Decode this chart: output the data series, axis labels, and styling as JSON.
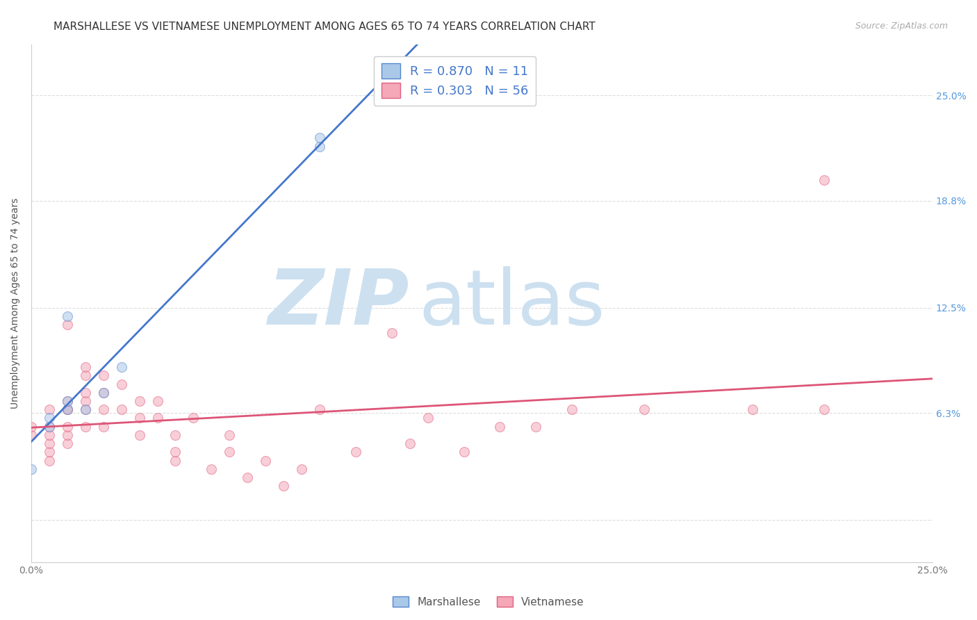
{
  "title": "MARSHALLESE VS VIETNAMESE UNEMPLOYMENT AMONG AGES 65 TO 74 YEARS CORRELATION CHART",
  "source": "Source: ZipAtlas.com",
  "ylabel": "Unemployment Among Ages 65 to 74 years",
  "xlim": [
    0.0,
    0.25
  ],
  "ylim": [
    -0.025,
    0.28
  ],
  "ytick_values": [
    0.0,
    0.063,
    0.125,
    0.188,
    0.25
  ],
  "right_ytick_labels": [
    "",
    "6.3%",
    "12.5%",
    "18.8%",
    "25.0%"
  ],
  "right_ytick_color": "#5599dd",
  "xtick_labels": [
    "0.0%",
    "25.0%"
  ],
  "marshallese_color": "#aac8e8",
  "vietnamese_color": "#f4a8b8",
  "marshallese_edge_color": "#5588cc",
  "vietnamese_edge_color": "#e06080",
  "marshallese_line_color": "#4477cc",
  "vietnamese_line_color": "#dd5577",
  "marshallese_R": 0.87,
  "marshallese_N": 11,
  "vietnamese_R": 0.303,
  "vietnamese_N": 56,
  "marshallese_x": [
    0.0,
    0.005,
    0.005,
    0.01,
    0.01,
    0.01,
    0.015,
    0.02,
    0.025,
    0.08,
    0.08
  ],
  "marshallese_y": [
    0.03,
    0.055,
    0.06,
    0.065,
    0.07,
    0.12,
    0.065,
    0.075,
    0.09,
    0.22,
    0.225
  ],
  "vietnamese_x": [
    0.0,
    0.0,
    0.005,
    0.005,
    0.005,
    0.005,
    0.005,
    0.005,
    0.01,
    0.01,
    0.01,
    0.01,
    0.01,
    0.01,
    0.01,
    0.015,
    0.015,
    0.015,
    0.015,
    0.015,
    0.015,
    0.02,
    0.02,
    0.02,
    0.02,
    0.025,
    0.025,
    0.03,
    0.03,
    0.03,
    0.035,
    0.035,
    0.04,
    0.04,
    0.04,
    0.045,
    0.05,
    0.055,
    0.055,
    0.06,
    0.065,
    0.07,
    0.075,
    0.08,
    0.09,
    0.1,
    0.105,
    0.11,
    0.12,
    0.13,
    0.14,
    0.15,
    0.17,
    0.2,
    0.22,
    0.22
  ],
  "vietnamese_y": [
    0.05,
    0.055,
    0.035,
    0.04,
    0.045,
    0.05,
    0.055,
    0.065,
    0.045,
    0.05,
    0.055,
    0.065,
    0.065,
    0.07,
    0.115,
    0.055,
    0.065,
    0.07,
    0.075,
    0.085,
    0.09,
    0.055,
    0.065,
    0.075,
    0.085,
    0.065,
    0.08,
    0.05,
    0.06,
    0.07,
    0.06,
    0.07,
    0.035,
    0.04,
    0.05,
    0.06,
    0.03,
    0.04,
    0.05,
    0.025,
    0.035,
    0.02,
    0.03,
    0.065,
    0.04,
    0.11,
    0.045,
    0.06,
    0.04,
    0.055,
    0.055,
    0.065,
    0.065,
    0.065,
    0.065,
    0.2
  ],
  "watermark_ZIP_color": "#cce0f0",
  "watermark_atlas_color": "#cce0f0",
  "background_color": "#ffffff",
  "grid_color": "#dddddd",
  "title_fontsize": 11,
  "axis_label_fontsize": 10,
  "tick_fontsize": 10,
  "legend_fontsize": 13,
  "marker_size": 100,
  "marker_alpha": 0.55,
  "line_width": 2.0
}
